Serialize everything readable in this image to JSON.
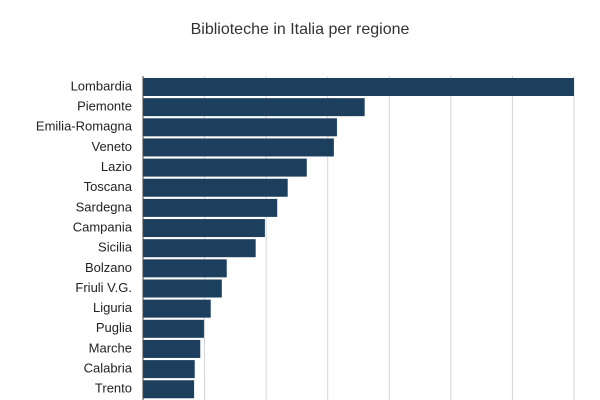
{
  "chart_data": {
    "type": "hbar",
    "title": "Biblioteche in Italia per regione",
    "categories": [
      "Lombardia",
      "Piemonte",
      "Emilia-Romagna",
      "Veneto",
      "Lazio",
      "Toscana",
      "Sardegna",
      "Campania",
      "Sicilia",
      "Bolzano",
      "Friuli V.G.",
      "Liguria",
      "Puglia",
      "Marche",
      "Calabria",
      "Trento"
    ],
    "values": [
      7.0,
      3.6,
      3.15,
      3.1,
      2.66,
      2.35,
      2.18,
      1.98,
      1.83,
      1.36,
      1.28,
      1.1,
      0.99,
      0.93,
      0.84,
      0.83
    ],
    "color": "#1c3f5e",
    "xlim": [
      0,
      7
    ],
    "grid_values": [
      0,
      1,
      2,
      3,
      4,
      5,
      6,
      7
    ],
    "grid": true
  }
}
